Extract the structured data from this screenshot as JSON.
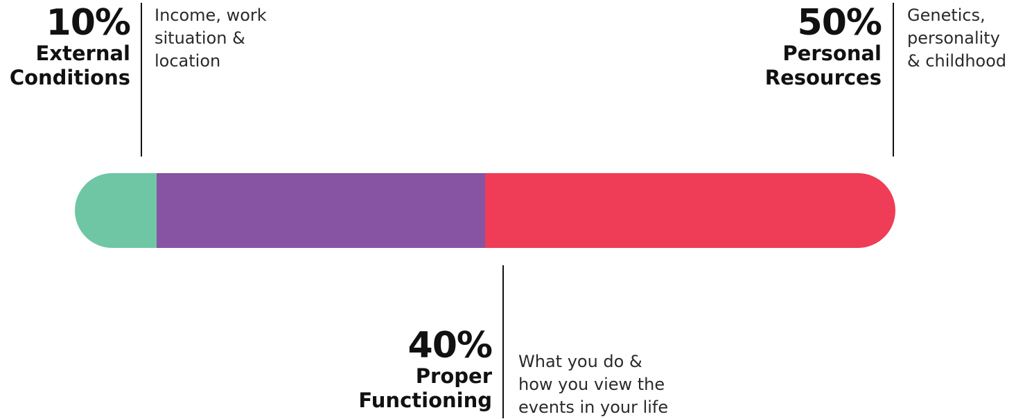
{
  "segments": [
    {
      "percent": "10%",
      "title_lines": [
        "External",
        "Conditions"
      ],
      "description_lines": [
        "Income, work",
        "situation &",
        "location"
      ],
      "share": 0.1,
      "color": "#6fc6a4"
    },
    {
      "percent": "40%",
      "title_lines": [
        "Proper",
        "Functioning"
      ],
      "description_lines": [
        "What you do &",
        "how you view the",
        "events in your life"
      ],
      "share": 0.4,
      "color": "#8654a3"
    },
    {
      "percent": "50%",
      "title_lines": [
        "Personal",
        "Resources"
      ],
      "description_lines": [
        "Genetics,",
        "personality",
        "& childhood"
      ],
      "share": 0.5,
      "color": "#ef3d57"
    }
  ]
}
